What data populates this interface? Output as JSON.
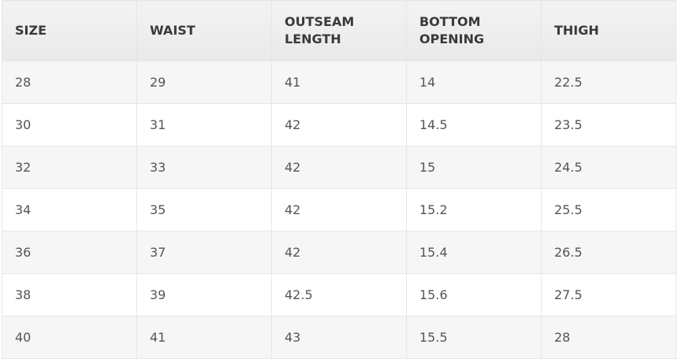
{
  "table": {
    "headers": [
      "SIZE",
      "WAIST",
      "OUTSEAM\nLENGTH",
      "BOTTOM\nOPENING",
      "THIGH"
    ],
    "rows": [
      [
        "28",
        "29",
        "41",
        "14",
        "22.5"
      ],
      [
        "30",
        "31",
        "42",
        "14.5",
        "23.5"
      ],
      [
        "32",
        "33",
        "42",
        "15",
        "24.5"
      ],
      [
        "34",
        "35",
        "42",
        "15.2",
        "25.5"
      ],
      [
        "36",
        "37",
        "42",
        "15.4",
        "26.5"
      ],
      [
        "38",
        "39",
        "42.5",
        "15.6",
        "27.5"
      ],
      [
        "40",
        "41",
        "43",
        "15.5",
        "28"
      ]
    ]
  }
}
